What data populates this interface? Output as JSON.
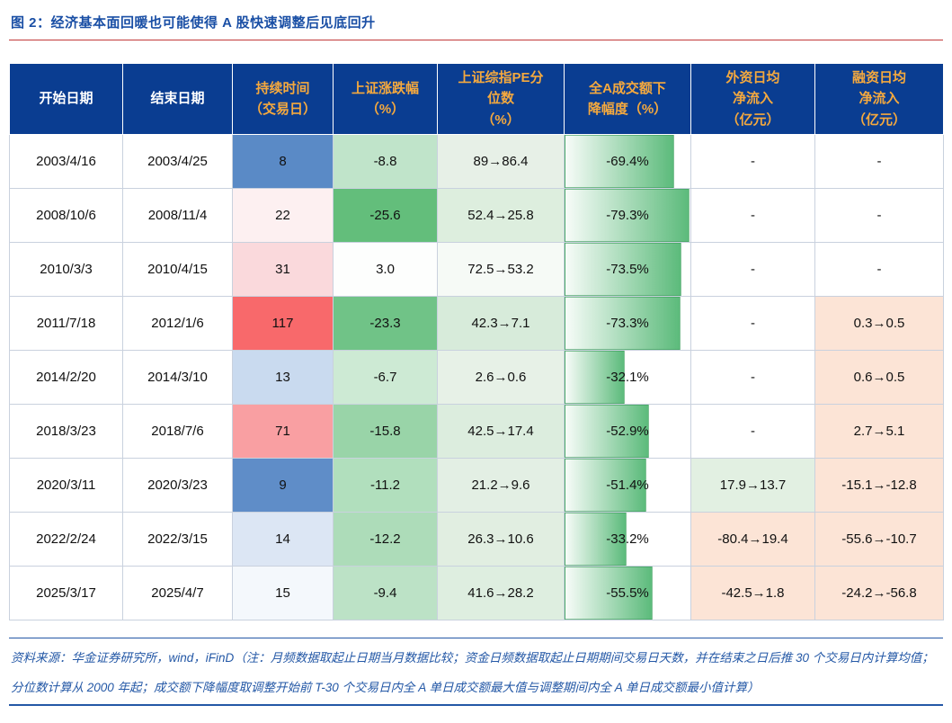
{
  "title": "图 2：经济基本面回暖也可能使得 A 股快速调整后见底回升",
  "colors": {
    "header_bg": "#0a3d91",
    "header_text_primary": "#ffffff",
    "header_text_accent": "#f5a93e",
    "title_color": "#1a4fa5",
    "title_rule_red": "#c23a3a",
    "footer_blue": "#2458a6",
    "data_bar_green": "#63be7b",
    "negative_cell_orange": "#fce4d6",
    "positive_cell_green": "#e2f0e2"
  },
  "table": {
    "headers": [
      "开始日期",
      "结束日期",
      "持续时间\n（交易日）",
      "上证涨跌幅\n（%）",
      "上证综指PE分\n位数\n（%）",
      "全A成交额下\n降幅度（%）",
      "外资日均\n净流入\n（亿元）",
      "融资日均\n净流入\n（亿元）"
    ],
    "rows": [
      {
        "start": "2003/4/16",
        "end": "2003/4/25",
        "duration": {
          "value": "8",
          "bg": "#5a8ac6"
        },
        "change": {
          "value": "-8.8",
          "bg": "#c0e4ca"
        },
        "pe": {
          "value": "89→86.4",
          "bg": "#e7f0e7"
        },
        "turnover": {
          "value": "-69.4%",
          "bar": 87
        },
        "foreign": {
          "value": "-",
          "bg": "#ffffff"
        },
        "margin": {
          "value": "-",
          "bg": "#ffffff"
        }
      },
      {
        "start": "2008/10/6",
        "end": "2008/11/4",
        "duration": {
          "value": "22",
          "bg": "#fdf0f1"
        },
        "change": {
          "value": "-25.6",
          "bg": "#63be7b"
        },
        "pe": {
          "value": "52.4→25.8",
          "bg": "#ddeede"
        },
        "turnover": {
          "value": "-79.3%",
          "bar": 99
        },
        "foreign": {
          "value": "-",
          "bg": "#ffffff"
        },
        "margin": {
          "value": "-",
          "bg": "#ffffff"
        }
      },
      {
        "start": "2010/3/3",
        "end": "2010/4/15",
        "duration": {
          "value": "31",
          "bg": "#fad9dc"
        },
        "change": {
          "value": "3.0",
          "bg": "#fdfefd"
        },
        "pe": {
          "value": "72.5→53.2",
          "bg": "#f6faf6"
        },
        "turnover": {
          "value": "-73.5%",
          "bar": 93
        },
        "foreign": {
          "value": "-",
          "bg": "#ffffff"
        },
        "margin": {
          "value": "-",
          "bg": "#ffffff"
        }
      },
      {
        "start": "2011/7/18",
        "end": "2012/1/6",
        "duration": {
          "value": "117",
          "bg": "#f8696b"
        },
        "change": {
          "value": "-23.3",
          "bg": "#70c387"
        },
        "pe": {
          "value": "42.3→7.1",
          "bg": "#d7ebda"
        },
        "turnover": {
          "value": "-73.3%",
          "bar": 92
        },
        "foreign": {
          "value": "-",
          "bg": "#ffffff"
        },
        "margin": {
          "value": "0.3→0.5",
          "bg": "#fce4d6"
        }
      },
      {
        "start": "2014/2/20",
        "end": "2014/3/10",
        "duration": {
          "value": "13",
          "bg": "#c9daef"
        },
        "change": {
          "value": "-6.7",
          "bg": "#cdead4"
        },
        "pe": {
          "value": "2.6→0.6",
          "bg": "#e7f1e7"
        },
        "turnover": {
          "value": "-32.1%",
          "bar": 48
        },
        "foreign": {
          "value": "-",
          "bg": "#ffffff"
        },
        "margin": {
          "value": "0.6→0.5",
          "bg": "#fce4d6"
        }
      },
      {
        "start": "2018/3/23",
        "end": "2018/7/6",
        "duration": {
          "value": "71",
          "bg": "#f99fa2"
        },
        "change": {
          "value": "-15.8",
          "bg": "#99d4a8"
        },
        "pe": {
          "value": "42.5→17.4",
          "bg": "#dcedde"
        },
        "turnover": {
          "value": "-52.9%",
          "bar": 67
        },
        "foreign": {
          "value": "-",
          "bg": "#ffffff"
        },
        "margin": {
          "value": "2.7→5.1",
          "bg": "#fce4d6"
        }
      },
      {
        "start": "2020/3/11",
        "end": "2020/3/23",
        "duration": {
          "value": "9",
          "bg": "#5f8dc8"
        },
        "change": {
          "value": "-11.2",
          "bg": "#b1dfbd"
        },
        "pe": {
          "value": "21.2→9.6",
          "bg": "#e3efe4"
        },
        "turnover": {
          "value": "-51.4%",
          "bar": 65
        },
        "foreign": {
          "value": "17.9→13.7",
          "bg": "#e2f0e2"
        },
        "margin": {
          "value": "-15.1→-12.8",
          "bg": "#fce4d6"
        }
      },
      {
        "start": "2022/2/24",
        "end": "2022/3/15",
        "duration": {
          "value": "14",
          "bg": "#dce6f4"
        },
        "change": {
          "value": "-12.2",
          "bg": "#addcb9"
        },
        "pe": {
          "value": "26.3→10.6",
          "bg": "#e1eee1"
        },
        "turnover": {
          "value": "-33.2%",
          "bar": 49
        },
        "foreign": {
          "value": "-80.4→19.4",
          "bg": "#fce4d6"
        },
        "margin": {
          "value": "-55.6→-10.7",
          "bg": "#fce4d6"
        }
      },
      {
        "start": "2025/3/17",
        "end": "2025/4/7",
        "duration": {
          "value": "15",
          "bg": "#f4f8fc"
        },
        "change": {
          "value": "-9.4",
          "bg": "#bce2c6"
        },
        "pe": {
          "value": "41.6→28.2",
          "bg": "#deeee0"
        },
        "turnover": {
          "value": "-55.5%",
          "bar": 70
        },
        "foreign": {
          "value": "-42.5→1.8",
          "bg": "#fce4d6"
        },
        "margin": {
          "value": "-24.2→-56.8",
          "bg": "#fce4d6"
        }
      }
    ]
  },
  "footer": "资料来源：华金证券研究所，wind，iFinD（注：月频数据取起止日期当月数据比较；资金日频数据取起止日期期间交易日天数，并在结束之日后推 30 个交易日内计算均值；分位数计算从 2000 年起；成交额下降幅度取调整开始前 T-30 个交易日内全 A 单日成交额最大值与调整期间内全 A 单日成交额最小值计算）"
}
